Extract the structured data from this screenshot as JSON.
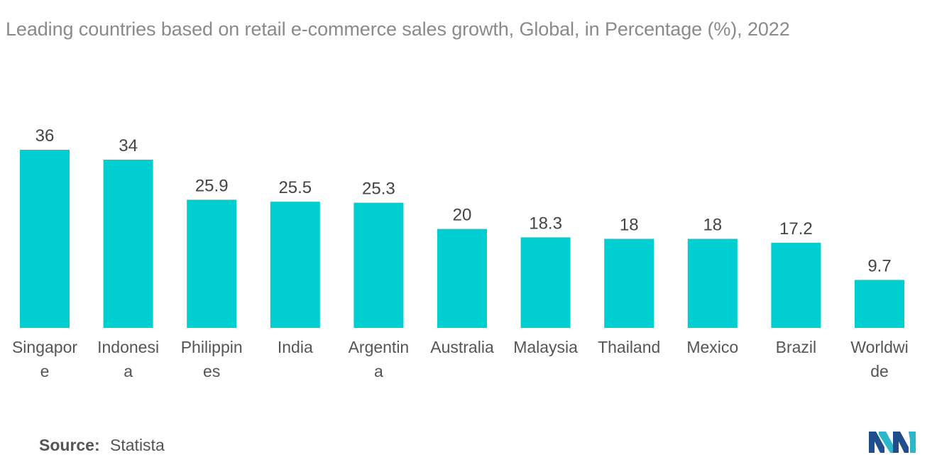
{
  "title": "Leading countries based on retail e-commerce sales growth, Global, in Percentage (%), 2022",
  "source": {
    "label": "Source:",
    "value": "Statista"
  },
  "colors": {
    "bar": "#00ced1",
    "logo_dark": "#1e4f8c",
    "logo_light": "#2bb7c9"
  },
  "chart_data": {
    "type": "bar",
    "title": "Leading countries based on retail e-commerce sales growth, Global, in Percentage (%), 2022",
    "categories": [
      [
        "Singapor",
        "e"
      ],
      [
        "Indonesi",
        "a"
      ],
      [
        "Philippin",
        "es"
      ],
      [
        "India"
      ],
      [
        "Argentin",
        "a"
      ],
      [
        "Australia"
      ],
      [
        "Malaysia"
      ],
      [
        "Thailand"
      ],
      [
        "Mexico"
      ],
      [
        "Brazil"
      ],
      [
        "Worldwi",
        "de"
      ]
    ],
    "values": [
      36,
      34,
      25.9,
      25.5,
      25.3,
      20,
      18.3,
      18,
      18,
      17.2,
      9.7
    ],
    "value_labels": [
      "36",
      "34",
      "25.9",
      "25.5",
      "25.3",
      "20",
      "18.3",
      "18",
      "18",
      "17.2",
      "9.7"
    ],
    "ylim": [
      0,
      36
    ],
    "grid": false,
    "legend": "none"
  }
}
